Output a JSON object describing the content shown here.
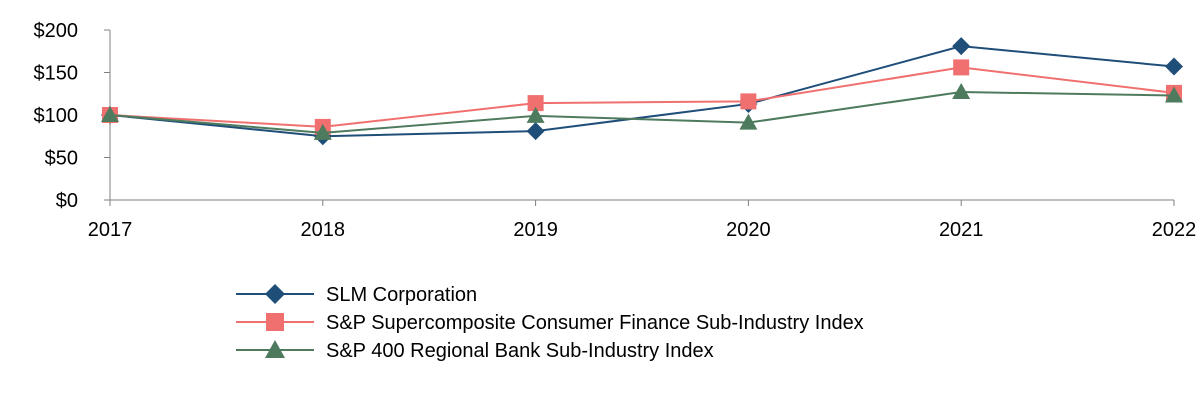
{
  "chart_data": {
    "type": "line",
    "title": "",
    "xlabel": "",
    "ylabel": "",
    "x": [
      "2017",
      "2018",
      "2019",
      "2020",
      "2021",
      "2022"
    ],
    "ylim": [
      0,
      200
    ],
    "yticks": [
      0,
      50,
      100,
      150,
      200
    ],
    "ytick_labels": [
      "$0",
      "$50",
      "$100",
      "$150",
      "$200"
    ],
    "grid": false,
    "legend_position": "bottom",
    "series": [
      {
        "name": "SLM Corporation",
        "marker": "diamond",
        "color": "#1f4e79",
        "values": [
          100,
          75,
          81,
          113,
          181,
          157
        ]
      },
      {
        "name": "S&P Supercomposite Consumer Finance Sub-Industry Index",
        "marker": "square",
        "color": "#f07070",
        "values": [
          100,
          86,
          114,
          116,
          156,
          126
        ]
      },
      {
        "name": "S&P 400 Regional Bank Sub-Industry Index",
        "marker": "triangle",
        "color": "#4e7a5e",
        "values": [
          100,
          79,
          99,
          91,
          127,
          123
        ]
      }
    ]
  }
}
